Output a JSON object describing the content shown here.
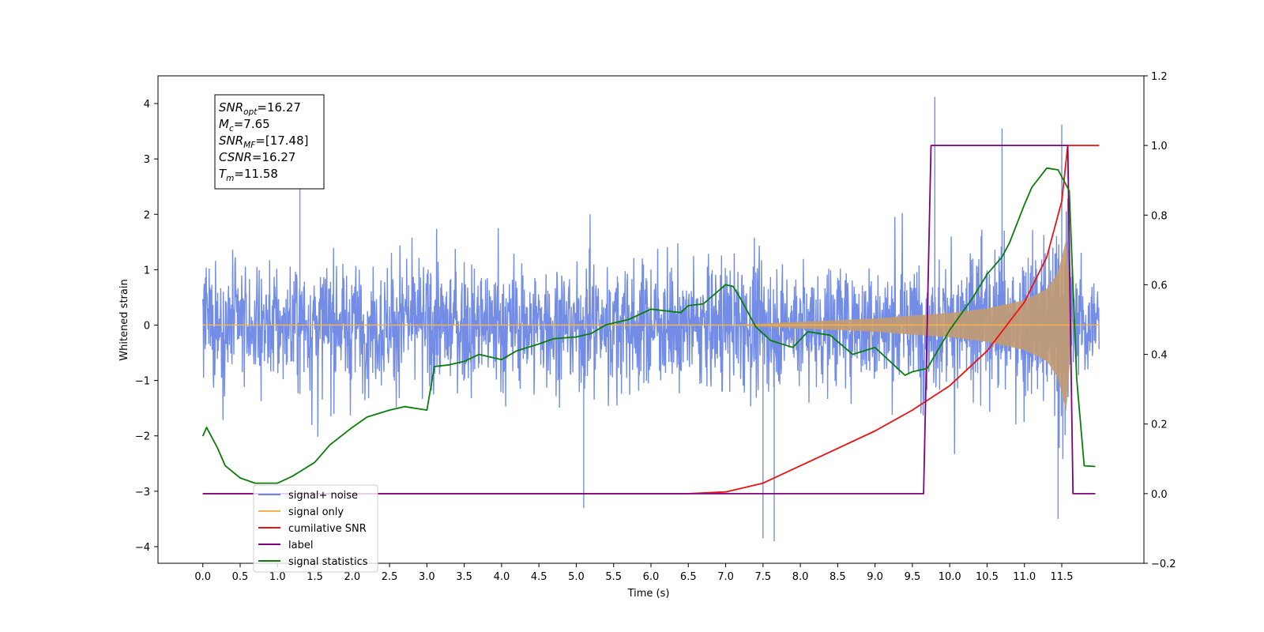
{
  "chart_data": {
    "type": "line",
    "xlabel": "Time (s)",
    "ylabel_left": "Whitened strain",
    "ylabel_right": "",
    "xlim": [
      -0.6,
      12.6
    ],
    "ylim_left": [
      -4.3,
      4.5
    ],
    "ylim_right": [
      -0.2,
      1.2
    ],
    "x_ticks": [
      0.0,
      0.5,
      1.0,
      1.5,
      2.0,
      2.5,
      3.0,
      3.5,
      4.0,
      4.5,
      5.0,
      5.5,
      6.0,
      6.5,
      7.0,
      7.5,
      8.0,
      8.5,
      9.0,
      9.5,
      10.0,
      10.5,
      11.0,
      11.5
    ],
    "x_tick_labels": [
      "0.0",
      "0.5",
      "1.0",
      "1.5",
      "2.0",
      "2.5",
      "3.0",
      "3.5",
      "4.0",
      "4.5",
      "5.0",
      "5.5",
      "6.0",
      "6.5",
      "7.0",
      "7.5",
      "8.0",
      "8.5",
      "9.0",
      "9.5",
      "10.0",
      "10.5",
      "11.0",
      "11.5"
    ],
    "y_ticks_left": [
      -4,
      -3,
      -2,
      -1,
      0,
      1,
      2,
      3,
      4
    ],
    "y_tick_labels_left": [
      "−4",
      "−3",
      "−2",
      "−1",
      "0",
      "1",
      "2",
      "3",
      "4"
    ],
    "y_ticks_right": [
      -0.2,
      0.0,
      0.2,
      0.4,
      0.6,
      0.8,
      1.0,
      1.2
    ],
    "y_tick_labels_right": [
      "−0.2",
      "0.0",
      "0.2",
      "0.4",
      "0.6",
      "0.8",
      "1.0",
      "1.2"
    ],
    "grid": false,
    "legend_position": "lower-left",
    "annotation": [
      {
        "base": "SNR",
        "sub": "opt",
        "rest": "=16.27"
      },
      {
        "base": "M",
        "sub": "c",
        "rest": "=7.65"
      },
      {
        "base": "SNR",
        "sub": "MF",
        "rest": "=[17.48]"
      },
      {
        "base": "CSNR",
        "sub": "",
        "rest": "=16.27"
      },
      {
        "base": "T",
        "sub": "m",
        "rest": "=11.58"
      }
    ],
    "series": [
      {
        "name": "signal+ noise",
        "axis": "left",
        "color": "#6b87e6",
        "style": "noise band",
        "x_range": [
          0.0,
          12.0
        ],
        "typical_envelope": [
          -2.0,
          2.0
        ],
        "max_peak": 4.12,
        "min_peak": -3.9
      },
      {
        "name": "signal only",
        "axis": "left",
        "color": "#f5b350",
        "style": "chirp",
        "x_range": [
          0.0,
          12.0
        ],
        "envelope_points": [
          [
            0.0,
            0.0
          ],
          [
            7.0,
            0.0
          ],
          [
            8.0,
            0.06
          ],
          [
            9.0,
            0.12
          ],
          [
            10.0,
            0.22
          ],
          [
            10.5,
            0.3
          ],
          [
            11.0,
            0.45
          ],
          [
            11.3,
            0.65
          ],
          [
            11.45,
            0.95
          ],
          [
            11.55,
            1.5
          ],
          [
            11.58,
            1.65
          ],
          [
            11.62,
            0.0
          ],
          [
            12.0,
            0.0
          ]
        ]
      },
      {
        "name": "cumilative SNR",
        "axis": "right",
        "color": "#ee1111",
        "points": [
          [
            0.0,
            0.0
          ],
          [
            6.5,
            0.0
          ],
          [
            7.0,
            0.005
          ],
          [
            7.5,
            0.03
          ],
          [
            8.0,
            0.08
          ],
          [
            8.5,
            0.13
          ],
          [
            9.0,
            0.18
          ],
          [
            9.5,
            0.24
          ],
          [
            10.0,
            0.31
          ],
          [
            10.5,
            0.41
          ],
          [
            11.0,
            0.55
          ],
          [
            11.3,
            0.68
          ],
          [
            11.5,
            0.84
          ],
          [
            11.58,
            1.0
          ],
          [
            12.0,
            1.0
          ]
        ]
      },
      {
        "name": "label",
        "axis": "right",
        "color": "#800080",
        "points": [
          [
            0.0,
            0.0
          ],
          [
            9.65,
            0.0
          ],
          [
            9.75,
            1.0
          ],
          [
            11.58,
            1.0
          ],
          [
            11.65,
            0.0
          ],
          [
            11.95,
            0.0
          ]
        ]
      },
      {
        "name": "signal statistics",
        "axis": "right",
        "color": "#0a7d0a",
        "points": [
          [
            0.0,
            0.165
          ],
          [
            0.05,
            0.19
          ],
          [
            0.2,
            0.13
          ],
          [
            0.3,
            0.08
          ],
          [
            0.5,
            0.045
          ],
          [
            0.7,
            0.03
          ],
          [
            1.0,
            0.03
          ],
          [
            1.2,
            0.05
          ],
          [
            1.5,
            0.09
          ],
          [
            1.7,
            0.14
          ],
          [
            2.0,
            0.19
          ],
          [
            2.2,
            0.22
          ],
          [
            2.5,
            0.24
          ],
          [
            2.7,
            0.25
          ],
          [
            3.0,
            0.24
          ],
          [
            3.1,
            0.365
          ],
          [
            3.3,
            0.37
          ],
          [
            3.5,
            0.38
          ],
          [
            3.7,
            0.4
          ],
          [
            4.0,
            0.385
          ],
          [
            4.2,
            0.41
          ],
          [
            4.5,
            0.43
          ],
          [
            4.7,
            0.445
          ],
          [
            5.0,
            0.45
          ],
          [
            5.2,
            0.46
          ],
          [
            5.4,
            0.485
          ],
          [
            5.5,
            0.49
          ],
          [
            5.7,
            0.5
          ],
          [
            6.0,
            0.53
          ],
          [
            6.2,
            0.525
          ],
          [
            6.4,
            0.52
          ],
          [
            6.5,
            0.54
          ],
          [
            6.7,
            0.545
          ],
          [
            7.0,
            0.6
          ],
          [
            7.1,
            0.595
          ],
          [
            7.2,
            0.56
          ],
          [
            7.4,
            0.48
          ],
          [
            7.6,
            0.44
          ],
          [
            7.9,
            0.42
          ],
          [
            8.1,
            0.465
          ],
          [
            8.4,
            0.455
          ],
          [
            8.7,
            0.4
          ],
          [
            9.0,
            0.42
          ],
          [
            9.2,
            0.38
          ],
          [
            9.4,
            0.34
          ],
          [
            9.5,
            0.35
          ],
          [
            9.7,
            0.36
          ],
          [
            10.0,
            0.47
          ],
          [
            10.3,
            0.56
          ],
          [
            10.5,
            0.63
          ],
          [
            10.7,
            0.68
          ],
          [
            10.8,
            0.72
          ],
          [
            11.0,
            0.83
          ],
          [
            11.1,
            0.88
          ],
          [
            11.3,
            0.935
          ],
          [
            11.45,
            0.93
          ],
          [
            11.6,
            0.87
          ],
          [
            11.7,
            0.33
          ],
          [
            11.8,
            0.08
          ],
          [
            11.95,
            0.078
          ]
        ]
      }
    ]
  }
}
